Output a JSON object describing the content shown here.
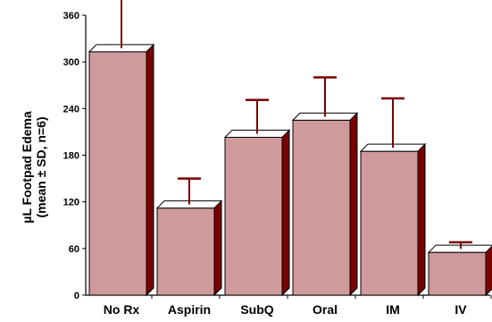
{
  "chart_data": {
    "type": "bar",
    "title": "",
    "xlabel": "",
    "ylabel_lines": [
      "µL Footpad Edema",
      "(mean ± SD, n=6)"
    ],
    "categories": [
      "No Rx",
      "Aspirin",
      "SubQ",
      "Oral",
      "IM",
      "IV"
    ],
    "values": [
      313,
      112,
      203,
      225,
      185,
      55
    ],
    "error_upper": [
      70,
      38,
      48,
      55,
      68,
      13
    ],
    "y_ticks": [
      0,
      60,
      120,
      180,
      240,
      300,
      360
    ],
    "ylim": [
      0,
      360
    ],
    "grid": false,
    "style": "3d-bars-with-upper-error-bars",
    "colors": {
      "bar_front": "#cf9a9c",
      "bar_side": "#7a0000",
      "bar_top": "#ffffff",
      "error_bar": "#7a0000",
      "axis": "#000000"
    }
  }
}
